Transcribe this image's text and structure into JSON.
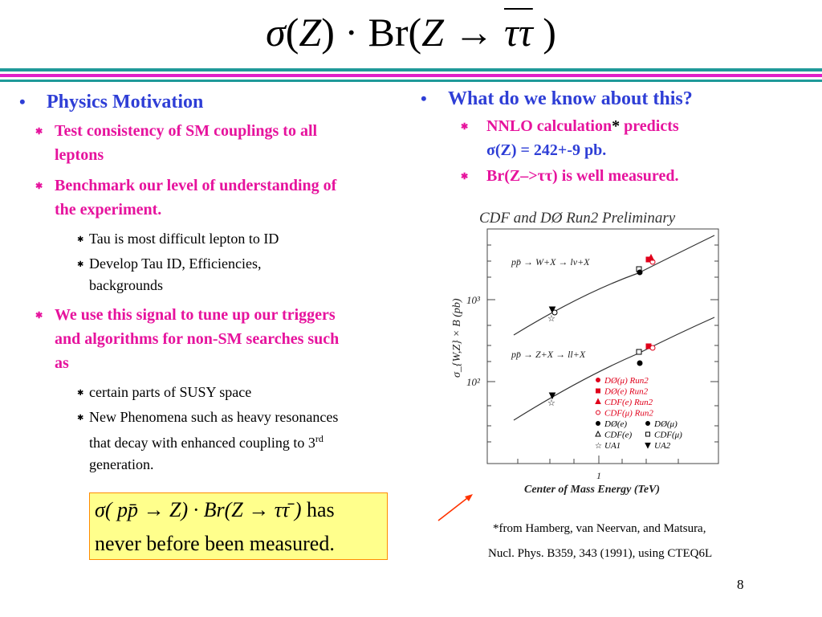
{
  "title": {
    "sigma": "σ",
    "open1": "(",
    "Z": "Z",
    "close1": ")",
    "dot": " · ",
    "Br": "Br",
    "open2": "(",
    "Z2": "Z",
    "arrow": " → ",
    "tau": "ττ",
    "close2": " )"
  },
  "left": {
    "heading": "Physics Motivation",
    "items": [
      {
        "text": "Test consistency of SM couplings to all leptons",
        "subitems": []
      },
      {
        "text": "Benchmark our level of understanding of the experiment.",
        "subitems": [
          "Tau is most difficult lepton to ID",
          "Develop Tau ID, Efficiencies, backgrounds"
        ]
      },
      {
        "text": "We use this signal to tune up our triggers and algorithms for non-SM searches such as",
        "subitems": [
          "certain parts of SUSY space"
        ]
      }
    ],
    "last_sub_prefix": "New Phenomena such as  heavy resonances that decay with enhanced coupling to 3",
    "last_sub_sup": "rd",
    "last_sub_suffix": " generation."
  },
  "right": {
    "heading": "What do we know about this?",
    "item1_pink": "NNLO calculation",
    "item1_star": "*",
    "item1_pink2": " predicts",
    "item1_blue": "σ(Z) = 242+-9 pb.",
    "item2": "Br(Z–>ττ) is well measured."
  },
  "box": {
    "line1_math": "σ( pp̄ → Z) · Br(Z → ττ̄ )",
    "line1_tail": " has",
    "line2": "never before been measured."
  },
  "footnote": {
    "line1": "*from Hamberg, van Neervan, and Matsura,",
    "line2": "Nucl. Phys. B359, 343 (1991), using CTEQ6L"
  },
  "page_number": "8",
  "colors": {
    "heading_blue": "#2e3ed6",
    "pink": "#e6139d",
    "rule_teal": "#1f9a9a",
    "rule_magenta": "#e020c8",
    "box_fill": "#ffff8c",
    "arrow": "#ff3300"
  },
  "chart_data": {
    "type": "scatter",
    "title": "CDF and DØ Run2 Preliminary",
    "xlabel": "Center of Mass Energy (TeV)",
    "ylabel": "σ_{W,Z} × B (pb)",
    "y_scale": "log",
    "x_tick_labels": [
      "1"
    ],
    "y_tick_labels": [
      "10³",
      "10²"
    ],
    "series": [
      {
        "name": "pp̄ → W+X → lν+X",
        "values": []
      },
      {
        "name": "pp̄ → Z+X → ll+X",
        "values": []
      }
    ],
    "legend": [
      "DØ(μ) Run2",
      "DØ(e) Run2",
      "CDF(e) Run2",
      "CDF(μ) Run2",
      "DØ(e)",
      "DØ(μ)",
      "CDF(e)",
      "CDF(μ)",
      "UA1",
      "UA2"
    ],
    "legend_placement": "bottom-right"
  }
}
